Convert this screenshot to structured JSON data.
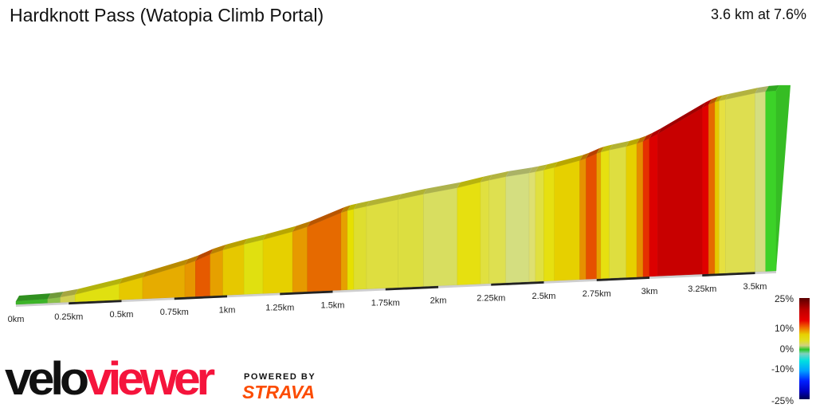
{
  "header": {
    "title": "Hardknott Pass (Watopia Climb Portal)",
    "summary": "3.6 km at 7.6%"
  },
  "chart_data": {
    "type": "area",
    "title": "Hardknott Pass (Watopia Climb Portal)",
    "xlim": [
      0,
      3.6
    ],
    "x_unit": "km",
    "x_ticks": [
      "0km",
      "0.25km",
      "0.5km",
      "0.75km",
      "1km",
      "1.25km",
      "1.5km",
      "1.75km",
      "2km",
      "2.25km",
      "2.5km",
      "2.75km",
      "3km",
      "3.25km",
      "3.5km"
    ],
    "segments": [
      {
        "from": 0.0,
        "to": 0.15,
        "grade": 1,
        "color": "#3cb428"
      },
      {
        "from": 0.15,
        "to": 0.21,
        "grade": 3,
        "color": "#8cc04a"
      },
      {
        "from": 0.21,
        "to": 0.28,
        "grade": 5,
        "color": "#d0d050"
      },
      {
        "from": 0.28,
        "to": 0.49,
        "grade": 7,
        "color": "#e0e010"
      },
      {
        "from": 0.49,
        "to": 0.6,
        "grade": 8,
        "color": "#e6c800"
      },
      {
        "from": 0.6,
        "to": 0.8,
        "grade": 9,
        "color": "#e6ac00"
      },
      {
        "from": 0.8,
        "to": 0.85,
        "grade": 11,
        "color": "#e69600"
      },
      {
        "from": 0.85,
        "to": 0.92,
        "grade": 14,
        "color": "#e65a00"
      },
      {
        "from": 0.92,
        "to": 0.98,
        "grade": 10,
        "color": "#e6a000"
      },
      {
        "from": 0.98,
        "to": 1.08,
        "grade": 8,
        "color": "#e6c800"
      },
      {
        "from": 1.08,
        "to": 1.17,
        "grade": 7,
        "color": "#e0e010"
      },
      {
        "from": 1.17,
        "to": 1.31,
        "grade": 8,
        "color": "#e6d000"
      },
      {
        "from": 1.31,
        "to": 1.38,
        "grade": 10,
        "color": "#e69a00"
      },
      {
        "from": 1.38,
        "to": 1.54,
        "grade": 13,
        "color": "#e66a00"
      },
      {
        "from": 1.54,
        "to": 1.57,
        "grade": 10,
        "color": "#e6a000"
      },
      {
        "from": 1.57,
        "to": 1.6,
        "grade": 7,
        "color": "#e6e000"
      },
      {
        "from": 1.6,
        "to": 1.66,
        "grade": 6,
        "color": "#dede30"
      },
      {
        "from": 1.66,
        "to": 1.81,
        "grade": 6,
        "color": "#dede40"
      },
      {
        "from": 1.81,
        "to": 1.93,
        "grade": 6,
        "color": "#dcde40"
      },
      {
        "from": 1.93,
        "to": 2.09,
        "grade": 5,
        "color": "#d8de60"
      },
      {
        "from": 2.09,
        "to": 2.2,
        "grade": 7,
        "color": "#e6e010"
      },
      {
        "from": 2.2,
        "to": 2.24,
        "grade": 6,
        "color": "#e0e040"
      },
      {
        "from": 2.24,
        "to": 2.32,
        "grade": 6,
        "color": "#dee050"
      },
      {
        "from": 2.32,
        "to": 2.43,
        "grade": 4,
        "color": "#d4de80"
      },
      {
        "from": 2.43,
        "to": 2.46,
        "grade": 5,
        "color": "#dee070"
      },
      {
        "from": 2.46,
        "to": 2.5,
        "grade": 6,
        "color": "#e0e040"
      },
      {
        "from": 2.5,
        "to": 2.55,
        "grade": 7,
        "color": "#e6e010"
      },
      {
        "from": 2.55,
        "to": 2.67,
        "grade": 8,
        "color": "#e6d000"
      },
      {
        "from": 2.67,
        "to": 2.7,
        "grade": 11,
        "color": "#e69000"
      },
      {
        "from": 2.7,
        "to": 2.75,
        "grade": 14,
        "color": "#e65000"
      },
      {
        "from": 2.75,
        "to": 2.77,
        "grade": 10,
        "color": "#e6a000"
      },
      {
        "from": 2.77,
        "to": 2.81,
        "grade": 7,
        "color": "#e6e010"
      },
      {
        "from": 2.81,
        "to": 2.89,
        "grade": 6,
        "color": "#dede40"
      },
      {
        "from": 2.89,
        "to": 2.94,
        "grade": 8,
        "color": "#e6d000"
      },
      {
        "from": 2.94,
        "to": 2.97,
        "grade": 11,
        "color": "#e68c00"
      },
      {
        "from": 2.97,
        "to": 3.0,
        "grade": 15,
        "color": "#e63000"
      },
      {
        "from": 3.0,
        "to": 3.04,
        "grade": 17,
        "color": "#dc0000"
      },
      {
        "from": 3.04,
        "to": 3.25,
        "grade": 19,
        "color": "#c80000"
      },
      {
        "from": 3.25,
        "to": 3.28,
        "grade": 16,
        "color": "#e00000"
      },
      {
        "from": 3.28,
        "to": 3.31,
        "grade": 13,
        "color": "#e66a00"
      },
      {
        "from": 3.31,
        "to": 3.33,
        "grade": 8,
        "color": "#e6c800"
      },
      {
        "from": 3.33,
        "to": 3.36,
        "grade": 6,
        "color": "#e6e040"
      },
      {
        "from": 3.36,
        "to": 3.5,
        "grade": 6,
        "color": "#dede50"
      },
      {
        "from": 3.5,
        "to": 3.55,
        "grade": 4,
        "color": "#d4de80"
      },
      {
        "from": 3.55,
        "to": 3.6,
        "grade": 1,
        "color": "#3cd228"
      }
    ],
    "legend": {
      "type": "colorbar",
      "labels": [
        "25%",
        "10%",
        "0%",
        "-10%",
        "-25%"
      ],
      "placement": "bottom-right"
    }
  },
  "branding": {
    "velo": "velo",
    "viewer": "viewer",
    "powered_by": "POWERED BY",
    "strava": "STRAVA"
  }
}
